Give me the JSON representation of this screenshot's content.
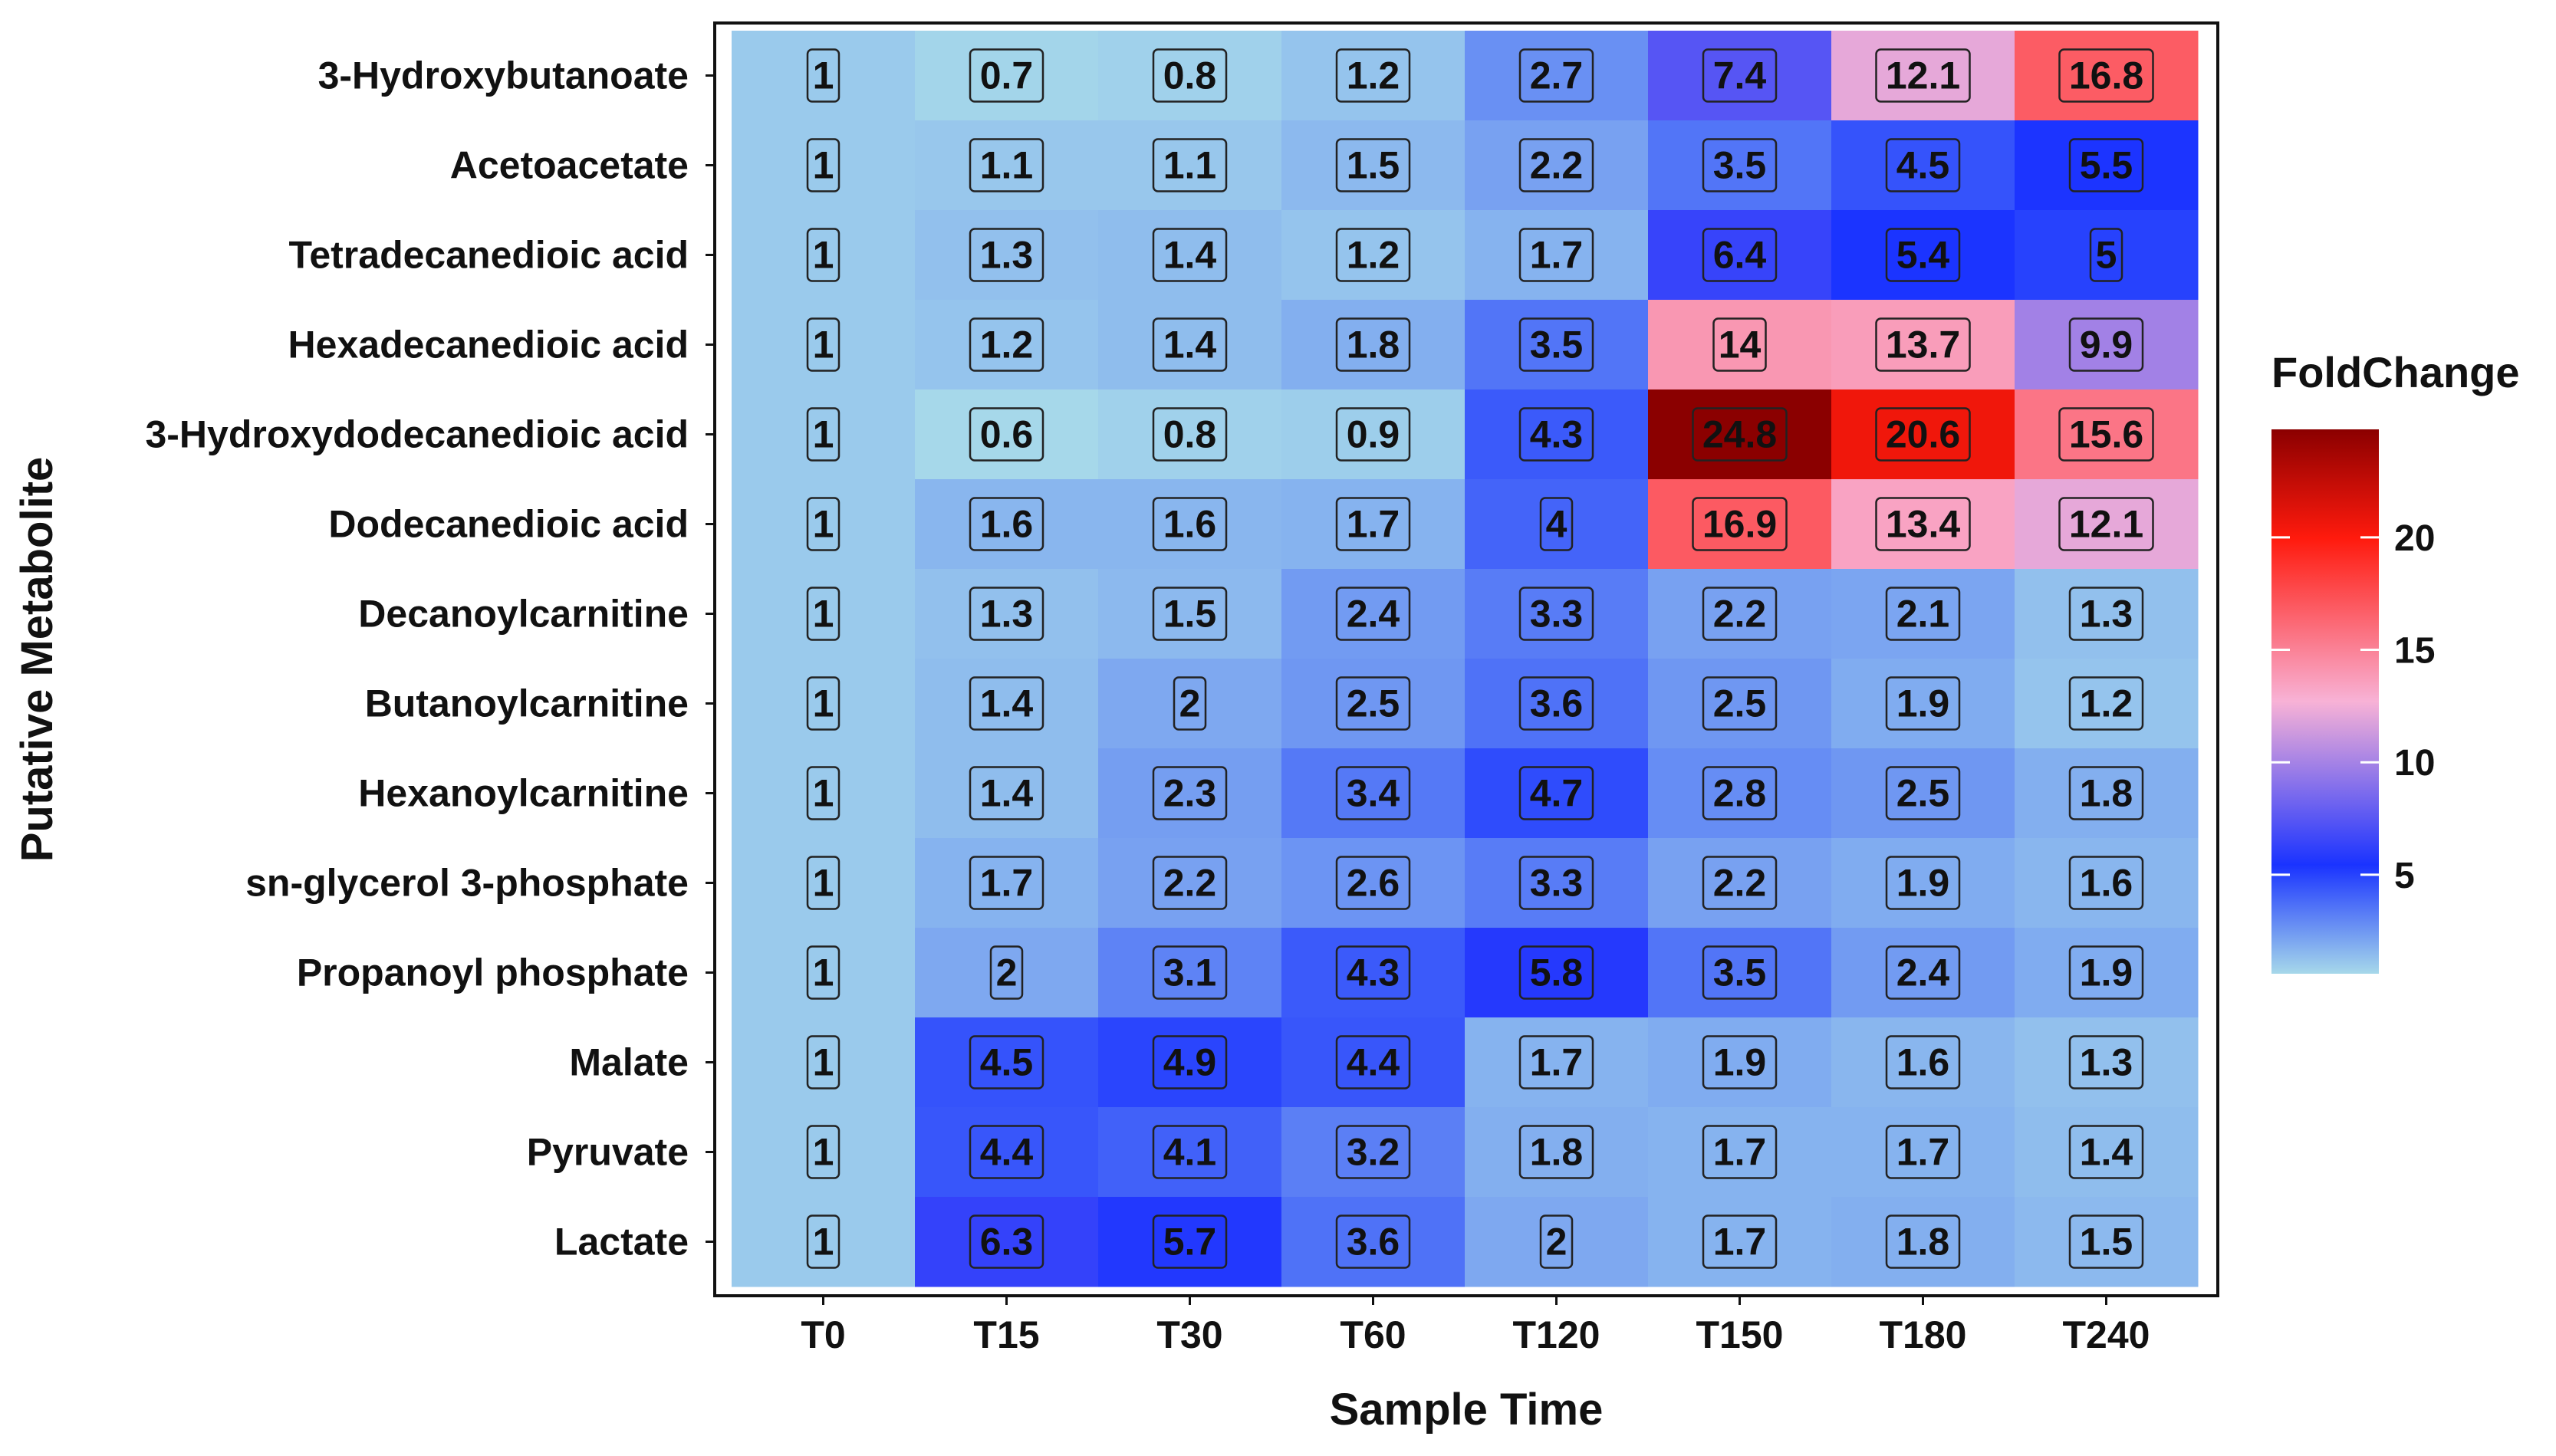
{
  "chart_data": {
    "type": "heatmap",
    "xlabel": "Sample Time",
    "ylabel": "Putative Metabolite",
    "x": [
      "T0",
      "T15",
      "T30",
      "T60",
      "T120",
      "T150",
      "T180",
      "T240"
    ],
    "y": [
      "3-Hydroxybutanoate",
      "Acetoacetate",
      "Tetradecanedioic acid",
      "Hexadecanedioic acid",
      "3-Hydroxydodecanedioic acid",
      "Dodecanedioic acid",
      "Decanoylcarnitine",
      "Butanoylcarnitine",
      "Hexanoylcarnitine",
      "sn-glycerol 3-phosphate",
      "Propanoyl phosphate",
      "Malate",
      "Pyruvate",
      "Lactate"
    ],
    "values": [
      [
        1,
        0.7,
        0.8,
        1.2,
        2.7,
        7.4,
        12.1,
        16.8
      ],
      [
        1,
        1.1,
        1.1,
        1.5,
        2.2,
        3.5,
        4.5,
        5.5
      ],
      [
        1,
        1.3,
        1.4,
        1.2,
        1.7,
        6.4,
        5.4,
        5
      ],
      [
        1,
        1.2,
        1.4,
        1.8,
        3.5,
        14,
        13.7,
        9.9
      ],
      [
        1,
        0.6,
        0.8,
        0.9,
        4.3,
        24.8,
        20.6,
        15.6
      ],
      [
        1,
        1.6,
        1.6,
        1.7,
        4,
        16.9,
        13.4,
        12.1
      ],
      [
        1,
        1.3,
        1.5,
        2.4,
        3.3,
        2.2,
        2.1,
        1.3
      ],
      [
        1,
        1.4,
        2,
        2.5,
        3.6,
        2.5,
        1.9,
        1.2
      ],
      [
        1,
        1.4,
        2.3,
        3.4,
        4.7,
        2.8,
        2.5,
        1.8
      ],
      [
        1,
        1.7,
        2.2,
        2.6,
        3.3,
        2.2,
        1.9,
        1.6
      ],
      [
        1,
        2,
        3.1,
        4.3,
        5.8,
        3.5,
        2.4,
        1.9
      ],
      [
        1,
        4.5,
        4.9,
        4.4,
        1.7,
        1.9,
        1.6,
        1.3
      ],
      [
        1,
        4.4,
        4.1,
        3.2,
        1.8,
        1.7,
        1.7,
        1.4
      ],
      [
        1,
        6.3,
        5.7,
        3.6,
        2,
        1.7,
        1.8,
        1.5
      ]
    ],
    "legend": {
      "title": "FoldChange",
      "range": [
        0.6,
        24.8
      ],
      "ticks": [
        5,
        10,
        15,
        20
      ],
      "placement": "right"
    },
    "colors": {
      "low": "#a6d8ea",
      "mid": "#1a33ff",
      "upper_mid": "#f8b2d6",
      "high_mid": "#ff1a0d",
      "high": "#8b0000",
      "label_box_border": "#222222",
      "panel_border": "#111111"
    }
  }
}
